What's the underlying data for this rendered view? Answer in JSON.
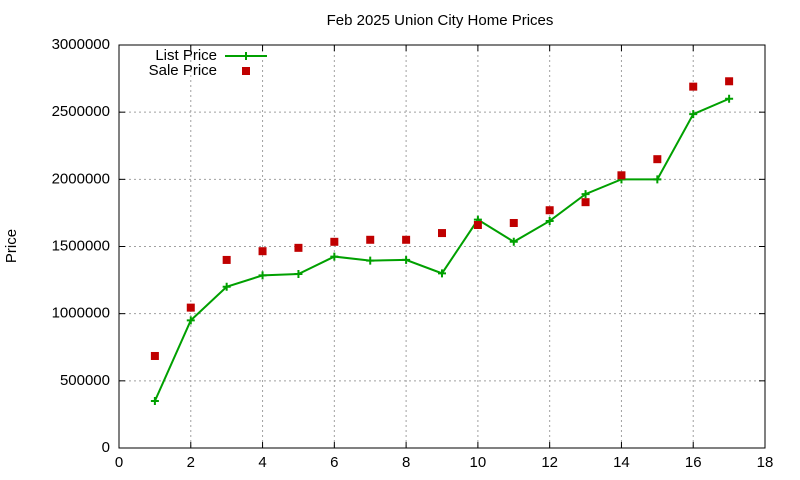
{
  "chart_data": {
    "type": "line",
    "title": "Feb 2025 Union City Home Prices",
    "y_label": "Price",
    "x": [
      1,
      2,
      3,
      4,
      5,
      6,
      7,
      8,
      9,
      10,
      11,
      12,
      13,
      14,
      15,
      16,
      17
    ],
    "series": [
      {
        "name": "List Price",
        "color": "#00a000",
        "mode": "linespoints",
        "values": [
          350000,
          950000,
          1200000,
          1285000,
          1295000,
          1425000,
          1395000,
          1400000,
          1300000,
          1700000,
          1535000,
          1690000,
          1890000,
          2000000,
          2000000,
          2485000,
          2600000
        ]
      },
      {
        "name": "Sale Price",
        "color": "#c00000",
        "mode": "points",
        "values": [
          685000,
          1045000,
          1400000,
          1465000,
          1490000,
          1535000,
          1550000,
          1550000,
          1600000,
          1660000,
          1675000,
          1770000,
          1830000,
          2030000,
          2150000,
          2690000,
          2730000
        ]
      }
    ],
    "xlim": [
      0,
      18
    ],
    "xticks": [
      0,
      2,
      4,
      6,
      8,
      10,
      12,
      14,
      16,
      18
    ],
    "ylim": [
      0,
      3000000
    ],
    "yticks": [
      0,
      500000,
      1000000,
      1500000,
      2000000,
      2500000,
      3000000
    ],
    "grid": true,
    "legend": "top-left"
  }
}
